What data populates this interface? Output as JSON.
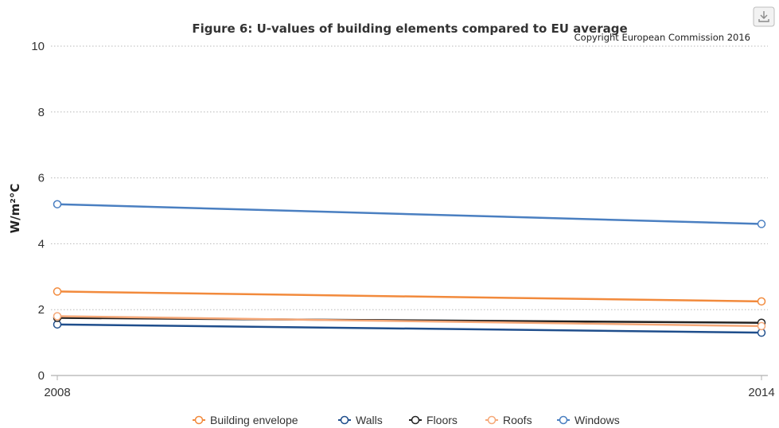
{
  "chart_data": {
    "type": "line",
    "title": "Figure 6: U-values of building elements compared to EU average",
    "subtitle": "Copyright European Commission 2016",
    "xlabel": "",
    "ylabel": "W/m²°C",
    "x": [
      "2008",
      "2014"
    ],
    "ylim": [
      0,
      10
    ],
    "yticks": [
      0,
      2,
      4,
      6,
      8,
      10
    ],
    "grid": true,
    "legend_position": "bottom",
    "series": [
      {
        "name": "Building envelope",
        "color": "#f28a3c",
        "values": [
          2.55,
          2.25
        ]
      },
      {
        "name": "Walls",
        "color": "#1f4e8c",
        "values": [
          1.55,
          1.3
        ]
      },
      {
        "name": "Floors",
        "color": "#222222",
        "values": [
          1.75,
          1.6
        ]
      },
      {
        "name": "Roofs",
        "color": "#f5a878",
        "values": [
          1.8,
          1.5
        ]
      },
      {
        "name": "Windows",
        "color": "#4a7fc1",
        "values": [
          5.2,
          4.6
        ]
      }
    ]
  },
  "toolbar": {
    "download_icon": "download-icon"
  }
}
